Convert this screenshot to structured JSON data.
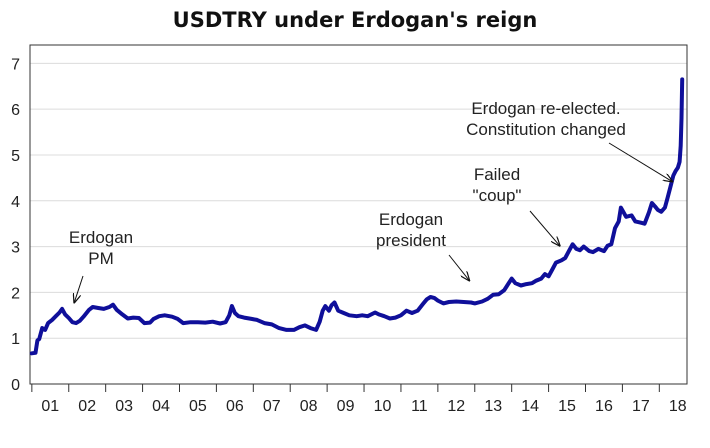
{
  "chart_data": {
    "type": "line",
    "title": "USDTRY under Erdogan's reign",
    "xlabel": "",
    "ylabel": "",
    "xlim": [
      2000.95,
      2018.75
    ],
    "ylim": [
      0,
      7.4
    ],
    "grid": true,
    "y_ticks": [
      0,
      1,
      2,
      3,
      4,
      5,
      6,
      7
    ],
    "y_tick_labels": [
      "0",
      "1",
      "2",
      "3",
      "4",
      "5",
      "6",
      "7"
    ],
    "x_ticks": [
      2001.5,
      2002.5,
      2003.5,
      2004.5,
      2005.5,
      2006.5,
      2007.5,
      2008.5,
      2009.5,
      2010.5,
      2011.5,
      2012.5,
      2013.5,
      2014.5,
      2015.5,
      2016.5,
      2017.5,
      2018.5
    ],
    "x_tick_labels": [
      "01",
      "02",
      "03",
      "04",
      "05",
      "06",
      "07",
      "08",
      "09",
      "10",
      "11",
      "12",
      "13",
      "14",
      "15",
      "16",
      "17",
      "18"
    ],
    "series": [
      {
        "name": "USDTRY",
        "color": "#0f0f9a",
        "points": [
          [
            2001.0,
            0.67
          ],
          [
            2001.1,
            0.68
          ],
          [
            2001.15,
            0.95
          ],
          [
            2001.2,
            0.98
          ],
          [
            2001.28,
            1.22
          ],
          [
            2001.36,
            1.18
          ],
          [
            2001.44,
            1.33
          ],
          [
            2001.55,
            1.4
          ],
          [
            2001.65,
            1.48
          ],
          [
            2001.75,
            1.56
          ],
          [
            2001.82,
            1.64
          ],
          [
            2001.9,
            1.52
          ],
          [
            2002.0,
            1.44
          ],
          [
            2002.1,
            1.35
          ],
          [
            2002.2,
            1.33
          ],
          [
            2002.3,
            1.38
          ],
          [
            2002.4,
            1.47
          ],
          [
            2002.55,
            1.62
          ],
          [
            2002.65,
            1.68
          ],
          [
            2002.8,
            1.66
          ],
          [
            2002.95,
            1.64
          ],
          [
            2003.1,
            1.68
          ],
          [
            2003.2,
            1.73
          ],
          [
            2003.3,
            1.62
          ],
          [
            2003.45,
            1.52
          ],
          [
            2003.6,
            1.43
          ],
          [
            2003.75,
            1.45
          ],
          [
            2003.9,
            1.44
          ],
          [
            2004.05,
            1.33
          ],
          [
            2004.2,
            1.34
          ],
          [
            2004.3,
            1.42
          ],
          [
            2004.45,
            1.48
          ],
          [
            2004.6,
            1.5
          ],
          [
            2004.8,
            1.47
          ],
          [
            2004.95,
            1.42
          ],
          [
            2005.1,
            1.33
          ],
          [
            2005.3,
            1.35
          ],
          [
            2005.5,
            1.35
          ],
          [
            2005.7,
            1.34
          ],
          [
            2005.9,
            1.36
          ],
          [
            2006.1,
            1.32
          ],
          [
            2006.25,
            1.35
          ],
          [
            2006.35,
            1.5
          ],
          [
            2006.42,
            1.7
          ],
          [
            2006.5,
            1.55
          ],
          [
            2006.6,
            1.48
          ],
          [
            2006.75,
            1.45
          ],
          [
            2006.95,
            1.42
          ],
          [
            2007.1,
            1.4
          ],
          [
            2007.3,
            1.33
          ],
          [
            2007.5,
            1.3
          ],
          [
            2007.7,
            1.22
          ],
          [
            2007.9,
            1.18
          ],
          [
            2008.1,
            1.18
          ],
          [
            2008.25,
            1.24
          ],
          [
            2008.4,
            1.28
          ],
          [
            2008.55,
            1.22
          ],
          [
            2008.7,
            1.18
          ],
          [
            2008.8,
            1.36
          ],
          [
            2008.88,
            1.6
          ],
          [
            2008.95,
            1.7
          ],
          [
            2009.05,
            1.6
          ],
          [
            2009.12,
            1.72
          ],
          [
            2009.2,
            1.78
          ],
          [
            2009.3,
            1.6
          ],
          [
            2009.45,
            1.55
          ],
          [
            2009.6,
            1.5
          ],
          [
            2009.8,
            1.48
          ],
          [
            2009.95,
            1.5
          ],
          [
            2010.1,
            1.48
          ],
          [
            2010.3,
            1.56
          ],
          [
            2010.4,
            1.52
          ],
          [
            2010.55,
            1.48
          ],
          [
            2010.7,
            1.43
          ],
          [
            2010.85,
            1.45
          ],
          [
            2011.0,
            1.5
          ],
          [
            2011.15,
            1.6
          ],
          [
            2011.3,
            1.55
          ],
          [
            2011.45,
            1.6
          ],
          [
            2011.6,
            1.75
          ],
          [
            2011.7,
            1.85
          ],
          [
            2011.8,
            1.9
          ],
          [
            2011.9,
            1.88
          ],
          [
            2012.0,
            1.82
          ],
          [
            2012.15,
            1.76
          ],
          [
            2012.3,
            1.79
          ],
          [
            2012.5,
            1.8
          ],
          [
            2012.7,
            1.79
          ],
          [
            2012.9,
            1.78
          ],
          [
            2013.0,
            1.76
          ],
          [
            2013.2,
            1.8
          ],
          [
            2013.35,
            1.86
          ],
          [
            2013.5,
            1.95
          ],
          [
            2013.65,
            1.96
          ],
          [
            2013.8,
            2.05
          ],
          [
            2013.92,
            2.2
          ],
          [
            2014.0,
            2.3
          ],
          [
            2014.1,
            2.2
          ],
          [
            2014.25,
            2.15
          ],
          [
            2014.4,
            2.18
          ],
          [
            2014.55,
            2.2
          ],
          [
            2014.65,
            2.25
          ],
          [
            2014.8,
            2.3
          ],
          [
            2014.9,
            2.4
          ],
          [
            2015.0,
            2.35
          ],
          [
            2015.1,
            2.5
          ],
          [
            2015.2,
            2.65
          ],
          [
            2015.35,
            2.7
          ],
          [
            2015.45,
            2.75
          ],
          [
            2015.55,
            2.9
          ],
          [
            2015.65,
            3.05
          ],
          [
            2015.75,
            2.95
          ],
          [
            2015.85,
            2.92
          ],
          [
            2015.95,
            3.0
          ],
          [
            2016.1,
            2.9
          ],
          [
            2016.2,
            2.88
          ],
          [
            2016.35,
            2.95
          ],
          [
            2016.5,
            2.9
          ],
          [
            2016.6,
            3.02
          ],
          [
            2016.7,
            3.05
          ],
          [
            2016.8,
            3.4
          ],
          [
            2016.9,
            3.55
          ],
          [
            2016.96,
            3.85
          ],
          [
            2017.03,
            3.75
          ],
          [
            2017.1,
            3.65
          ],
          [
            2017.25,
            3.68
          ],
          [
            2017.35,
            3.55
          ],
          [
            2017.5,
            3.52
          ],
          [
            2017.6,
            3.5
          ],
          [
            2017.72,
            3.75
          ],
          [
            2017.8,
            3.95
          ],
          [
            2017.88,
            3.88
          ],
          [
            2017.96,
            3.8
          ],
          [
            2018.05,
            3.76
          ],
          [
            2018.15,
            3.85
          ],
          [
            2018.22,
            4.05
          ],
          [
            2018.3,
            4.3
          ],
          [
            2018.38,
            4.55
          ],
          [
            2018.44,
            4.65
          ],
          [
            2018.5,
            4.72
          ],
          [
            2018.55,
            4.85
          ],
          [
            2018.58,
            5.2
          ],
          [
            2018.6,
            5.8
          ],
          [
            2018.62,
            6.65
          ]
        ]
      }
    ],
    "annotations": [
      {
        "text": [
          "Erdogan",
          "PM"
        ],
        "point": [
          2002.15,
          1.78
        ]
      },
      {
        "text": [
          "Erdogan",
          "president"
        ],
        "point": [
          2012.85,
          2.26
        ]
      },
      {
        "text": [
          "Failed",
          "\"coup\""
        ],
        "point": [
          2015.3,
          3.02
        ]
      },
      {
        "text": [
          "Erdogan re-elected.",
          "Constitution changed"
        ],
        "point": [
          2018.35,
          4.42
        ]
      }
    ]
  }
}
